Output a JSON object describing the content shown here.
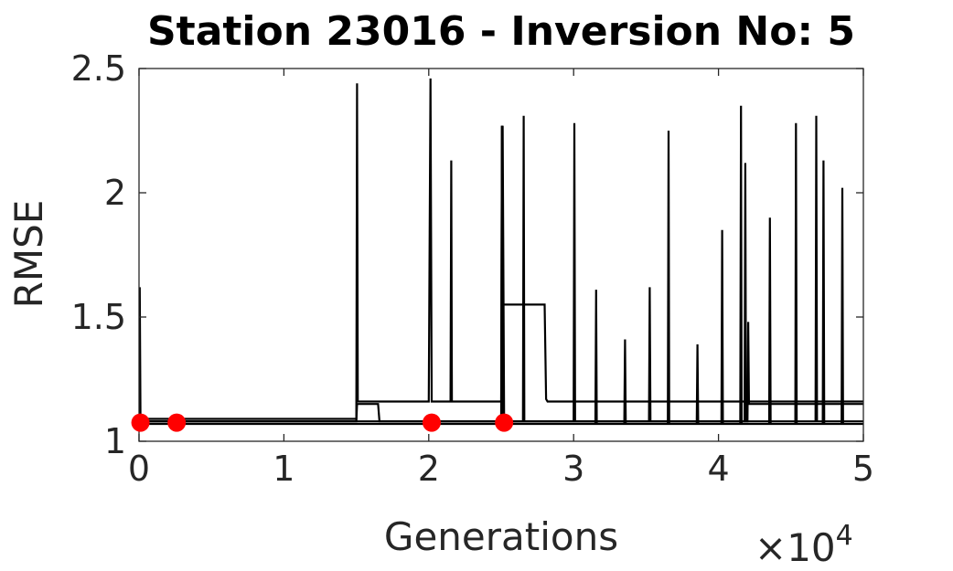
{
  "chart_data": {
    "type": "line",
    "title": "Station 23016 - Inversion No: 5",
    "xlabel": "Generations",
    "ylabel": "RMSE",
    "x_multiplier_label": "×10",
    "x_multiplier_exponent": "4",
    "xlim": [
      0,
      5
    ],
    "ylim": [
      1,
      2.5
    ],
    "x_ticks": [
      "0",
      "1",
      "2",
      "3",
      "4",
      "5"
    ],
    "y_ticks": [
      "1",
      "1.5",
      "2",
      "2.5"
    ],
    "grid": false,
    "colors": {
      "series": "#000000",
      "markers": "#ff0000",
      "axes": "#262626"
    },
    "series": [
      {
        "x": [
          0,
          0.005,
          0.01,
          1.5,
          1.505,
          1.51,
          2.0,
          2.012,
          2.02,
          2.05,
          2.1,
          2.15,
          2.155,
          2.16,
          2.5,
          2.505,
          2.51,
          2.52,
          2.53,
          2.8,
          2.81,
          2.82,
          2.85,
          3.2,
          3.6,
          4.0,
          4.5,
          5.0
        ],
        "y": [
          1.09,
          1.62,
          1.09,
          1.09,
          2.44,
          1.16,
          1.16,
          2.46,
          1.16,
          1.16,
          1.16,
          1.16,
          2.13,
          1.16,
          1.16,
          2.27,
          1.55,
          1.55,
          1.55,
          1.55,
          1.17,
          1.16,
          1.16,
          1.16,
          1.16,
          1.16,
          1.16,
          1.16
        ]
      },
      {
        "x": [
          0,
          1.5,
          1.505,
          1.51,
          1.65,
          1.66,
          2.0,
          2.02,
          2.03,
          2.5,
          2.51,
          2.52,
          2.65,
          2.655,
          2.66,
          3.0,
          3.005,
          3.01,
          3.5,
          4.0,
          4.2,
          4.205,
          4.21,
          4.5,
          5.0
        ],
        "y": [
          1.08,
          1.08,
          1.15,
          1.15,
          1.15,
          1.08,
          1.08,
          1.08,
          1.08,
          1.08,
          2.27,
          1.08,
          1.08,
          2.31,
          1.08,
          1.08,
          2.28,
          1.08,
          1.08,
          1.08,
          1.08,
          1.48,
          1.15,
          1.15,
          1.15
        ]
      },
      {
        "x": [
          0,
          2.5,
          2.505,
          2.51,
          3.15,
          3.155,
          3.16,
          3.35,
          3.355,
          3.36,
          3.65,
          3.655,
          3.66,
          3.85,
          3.855,
          3.86,
          4.02,
          4.025,
          4.03,
          4.15,
          4.155,
          4.16,
          4.35,
          4.355,
          4.36,
          4.53,
          4.535,
          4.54,
          4.72,
          4.725,
          4.73,
          4.85,
          4.855,
          4.86,
          5.0
        ],
        "y": [
          1.07,
          1.07,
          2.27,
          1.07,
          1.07,
          1.61,
          1.07,
          1.07,
          1.41,
          1.07,
          1.07,
          2.25,
          1.07,
          1.07,
          1.39,
          1.07,
          1.07,
          1.85,
          1.07,
          1.07,
          2.35,
          1.07,
          1.07,
          1.9,
          1.07,
          1.07,
          2.28,
          1.07,
          1.07,
          2.13,
          1.07,
          1.07,
          2.02,
          1.07,
          1.07
        ]
      },
      {
        "x": [
          0,
          3.0,
          3.5,
          3.52,
          3.525,
          3.53,
          4.0,
          4.18,
          4.185,
          4.19,
          4.6,
          4.67,
          4.675,
          4.68,
          5.0
        ],
        "y": [
          1.08,
          1.08,
          1.08,
          1.08,
          1.62,
          1.08,
          1.08,
          1.08,
          2.12,
          1.08,
          1.08,
          1.08,
          2.31,
          1.08,
          1.08
        ]
      }
    ],
    "markers": {
      "x": [
        0.01,
        0.26,
        2.02,
        2.52
      ],
      "y": [
        1.075,
        1.075,
        1.075,
        1.075
      ]
    }
  }
}
